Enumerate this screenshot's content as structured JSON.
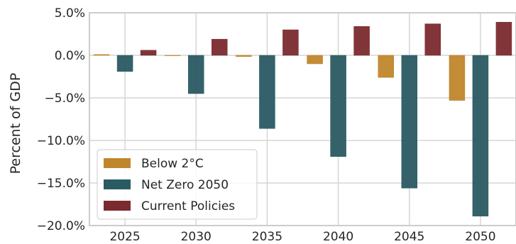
{
  "chart_data": {
    "type": "bar",
    "categories": [
      "2025",
      "2030",
      "2035",
      "2040",
      "2045",
      "2050"
    ],
    "series": [
      {
        "name": "Below 2°C",
        "color": "#c0862c",
        "values": [
          0.1,
          -0.05,
          -0.15,
          -1.0,
          -2.6,
          -5.3
        ]
      },
      {
        "name": "Net Zero 2050",
        "color": "#2a5a62",
        "values": [
          -1.9,
          -4.5,
          -8.6,
          -11.9,
          -15.6,
          -18.9
        ]
      },
      {
        "name": "Current Policies",
        "color": "#7b2a2e",
        "values": [
          0.6,
          1.9,
          3.0,
          3.4,
          3.7,
          3.9
        ]
      }
    ],
    "ylabel": "Percent of GDP",
    "xlabel": "",
    "ylim": [
      -20,
      5
    ],
    "yticks": [
      5,
      0,
      -5,
      -10,
      -15,
      -20
    ],
    "ytick_labels": [
      "5.0%",
      "0.0%",
      "−5.0%",
      "−10.0%",
      "−15.0%",
      "−20.0%"
    ],
    "grid": true,
    "legend": "lower-left"
  }
}
